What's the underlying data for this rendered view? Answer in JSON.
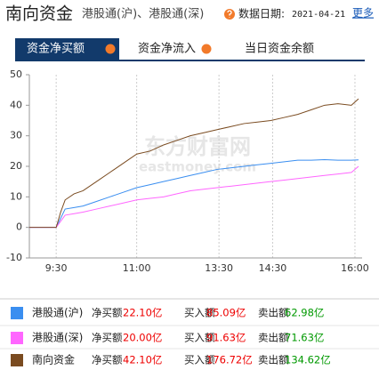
{
  "header": {
    "title": "南向资金",
    "subtitle": "港股通(沪)、港股通(深)",
    "date_label": "数据日期:",
    "date": "2021-04-21",
    "more": "更多"
  },
  "tabs": [
    "资金净买额",
    "资金净流入",
    "当日资金余额"
  ],
  "chart_data": {
    "type": "line",
    "watermark": [
      "东方财富网",
      "eastmoney.com"
    ],
    "x": [
      0,
      10,
      20,
      30,
      35,
      40,
      50,
      60,
      75,
      90,
      105,
      120,
      135,
      150,
      165,
      180,
      195,
      210,
      225,
      240,
      255,
      270,
      285,
      300,
      315,
      330,
      345,
      360,
      368
    ],
    "xlim": [
      0,
      372
    ],
    "xticks": [
      {
        "value": 30,
        "label": "9:30"
      },
      {
        "value": 120,
        "label": "11:00"
      },
      {
        "value": 212,
        "label": "13:30"
      },
      {
        "value": 272,
        "label": "14:30"
      },
      {
        "value": 364,
        "label": "16:00"
      }
    ],
    "ylim": [
      -10,
      50
    ],
    "yticks": [
      -10,
      0,
      10,
      20,
      30,
      40,
      50
    ],
    "grid": "x",
    "series": [
      {
        "name": "港股通(沪)",
        "color": "#3a8ef0",
        "values": [
          0,
          0,
          0,
          0,
          3,
          6,
          6.5,
          7,
          8.5,
          10,
          11.5,
          13,
          14,
          15,
          16,
          17,
          18,
          19,
          19.5,
          20,
          20.5,
          21,
          21.5,
          22,
          22,
          22.2,
          22,
          22,
          22.1
        ]
      },
      {
        "name": "港股通(深)",
        "color": "#ff66ff",
        "values": [
          0,
          0,
          0,
          0,
          2,
          4,
          4.5,
          5,
          6,
          7,
          8,
          9,
          9.5,
          10,
          11,
          12,
          12.5,
          13,
          13.5,
          14,
          14.5,
          15,
          15.5,
          16,
          16.5,
          17,
          17.5,
          18,
          20
        ]
      },
      {
        "name": "南向资金",
        "color": "#7a4b20",
        "values": [
          0,
          0,
          0,
          0,
          5,
          9,
          11,
          12,
          15,
          18,
          21,
          24,
          25,
          27,
          28.5,
          30,
          31,
          32,
          33,
          34,
          34.5,
          35,
          36,
          37,
          38.5,
          40,
          40.5,
          40,
          42.1
        ]
      }
    ]
  },
  "legend_table": {
    "rows": [
      [
        "净买额",
        "22.10亿",
        "买入额",
        "85.09亿",
        "卖出额",
        "62.98亿"
      ],
      [
        "净买额",
        "20.00亿",
        "买入额",
        "91.63亿",
        "卖出额",
        "71.63亿"
      ],
      [
        "净买额",
        "42.10亿",
        "买入额",
        "176.72亿",
        "卖出额",
        "134.62亿"
      ]
    ]
  }
}
